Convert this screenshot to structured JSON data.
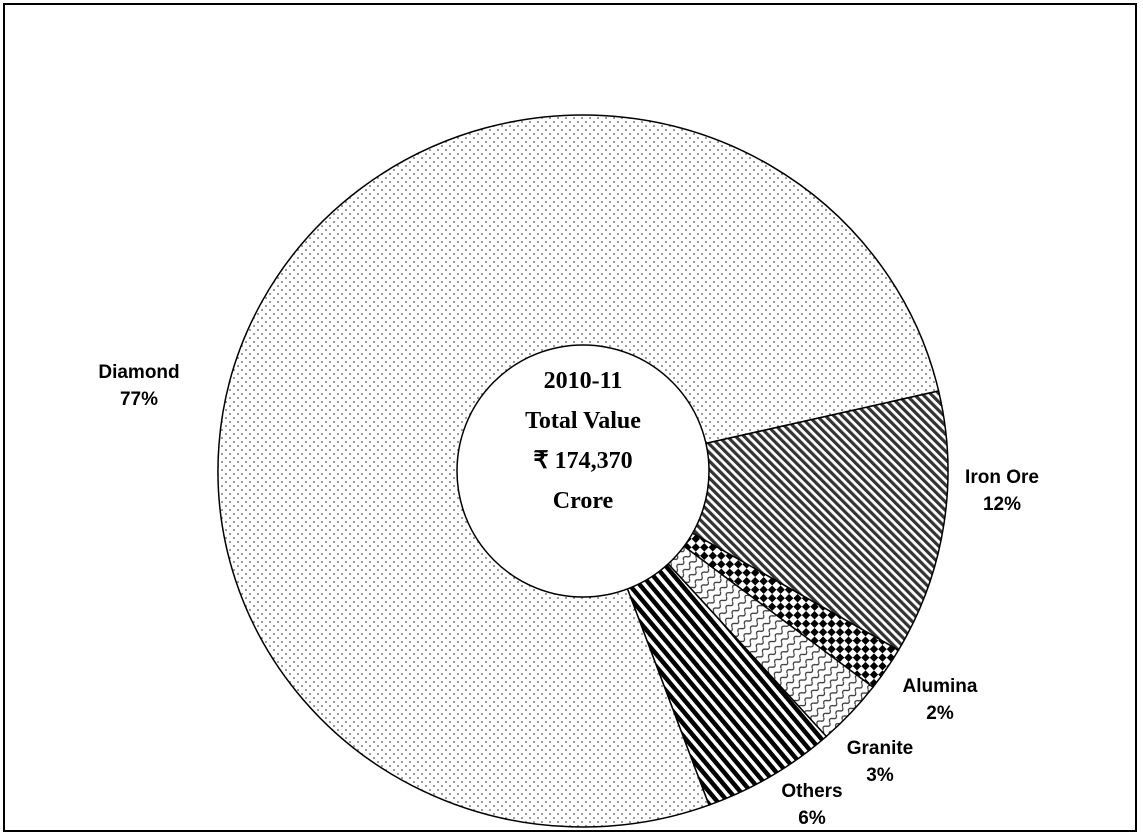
{
  "chart_data": {
    "type": "pie",
    "style": "donut",
    "center_text": [
      "2010-11",
      "Total Value",
      "₹ 174,370",
      "Crore"
    ],
    "slices": [
      {
        "label": "Iron Ore",
        "value": 12,
        "value_label": "12%",
        "pattern": "diagonal-hatch"
      },
      {
        "label": "Alumina",
        "value": 2,
        "value_label": "2%",
        "pattern": "checker"
      },
      {
        "label": "Granite",
        "value": 3,
        "value_label": "3%",
        "pattern": "wave"
      },
      {
        "label": "Others",
        "value": 6,
        "value_label": "6%",
        "pattern": "diagonal-stripes"
      },
      {
        "label": "Diamond",
        "value": 77,
        "value_label": "77%",
        "pattern": "dots"
      }
    ],
    "legend": "none",
    "colors": {
      "stroke": "#000000",
      "background": "#ffffff"
    }
  }
}
